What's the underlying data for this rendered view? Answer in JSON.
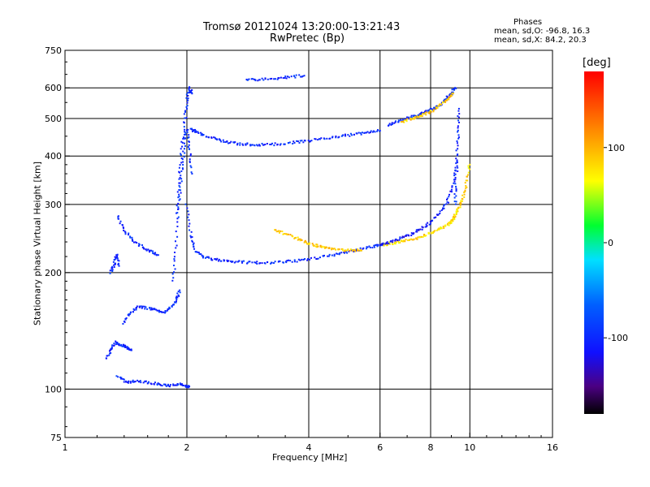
{
  "header": {
    "title_line1": "Tromsø 20121024 13:20:00-13:21:43",
    "title_line2": "RwPretec (Bp)",
    "phases_title": "Phases",
    "phases_o": "mean, sd,O:  -96.8, 16.3",
    "phases_x": "mean, sd,X:  84.2, 20.3"
  },
  "colorbar": {
    "unit": "[deg]",
    "range": [
      -180,
      180
    ],
    "ticks": [
      100,
      0,
      -100
    ],
    "tick_labels": [
      "100",
      "0",
      "-100"
    ]
  },
  "chart_data": {
    "type": "scatter",
    "title": "Tromsø 20121024 13:20:00-13:21:43",
    "subtitle": "RwPretec (Bp)",
    "xlabel": "Frequency [MHz]",
    "ylabel": "Stationary phase Virtual Height [km]",
    "xscale": "log",
    "yscale": "log",
    "xlim": [
      1,
      16
    ],
    "ylim": [
      75,
      750
    ],
    "xticks": [
      1,
      2,
      4,
      6,
      8,
      10,
      16
    ],
    "xtick_labels": [
      "1",
      "2",
      "4",
      "6",
      "8",
      "10",
      "16"
    ],
    "yticks": [
      75,
      100,
      200,
      300,
      400,
      500,
      600,
      750
    ],
    "ytick_labels": [
      "75",
      "100",
      "200",
      "300",
      "400",
      "500",
      "600",
      "750"
    ],
    "grid": true,
    "color_by": "phase [deg]",
    "traces": [
      {
        "phase": -100,
        "x": [
          1.3,
          1.32,
          1.34,
          1.36
        ],
        "y": [
          200,
          210,
          222,
          208
        ]
      },
      {
        "phase": -100,
        "x": [
          1.35,
          1.4,
          1.47,
          1.55,
          1.62,
          1.7
        ],
        "y": [
          280,
          258,
          242,
          233,
          227,
          222
        ]
      },
      {
        "phase": -100,
        "x": [
          1.27,
          1.3,
          1.34,
          1.38,
          1.42,
          1.46
        ],
        "y": [
          120,
          127,
          132,
          130,
          128,
          126
        ]
      },
      {
        "phase": -100,
        "x": [
          1.4,
          1.45,
          1.52,
          1.6,
          1.68,
          1.75,
          1.82,
          1.88,
          1.92
        ],
        "y": [
          148,
          158,
          163,
          162,
          160,
          158,
          162,
          170,
          180
        ]
      },
      {
        "phase": -100,
        "x": [
          1.35,
          1.42,
          1.5,
          1.6,
          1.7,
          1.8,
          1.9,
          1.98,
          2.02
        ],
        "y": [
          108,
          104,
          105,
          104,
          103,
          102,
          103,
          102,
          101
        ]
      },
      {
        "phase": -100,
        "x": [
          1.85,
          1.88,
          1.9,
          1.92,
          1.95,
          1.98,
          2.0,
          2.03,
          2.06
        ],
        "y": [
          190,
          230,
          300,
          360,
          430,
          500,
          560,
          600,
          580
        ]
      },
      {
        "phase": -95,
        "x": [
          1.9,
          1.93,
          1.96,
          2.0,
          2.03,
          2.06
        ],
        "y": [
          280,
          340,
          400,
          470,
          420,
          360
        ]
      },
      {
        "phase": -100,
        "x": [
          2.05,
          2.1,
          2.2,
          2.35,
          2.5,
          2.7,
          2.9,
          3.1,
          3.4,
          3.7,
          4.0,
          4.4,
          4.8,
          5.2,
          5.6,
          6.0
        ],
        "y": [
          470,
          462,
          452,
          442,
          435,
          430,
          428,
          428,
          430,
          434,
          438,
          444,
          450,
          455,
          460,
          465
        ]
      },
      {
        "phase": -100,
        "x": [
          2.0,
          2.05,
          2.1,
          2.2,
          2.35,
          2.5,
          2.7,
          2.95,
          3.2,
          3.5,
          3.8,
          4.2,
          4.6,
          5.0,
          5.4,
          5.8,
          6.1
        ],
        "y": [
          300,
          250,
          228,
          220,
          216,
          214,
          213,
          212,
          212,
          213,
          215,
          218,
          222,
          226,
          230,
          234,
          236
        ]
      },
      {
        "phase": 90,
        "x": [
          3.3,
          3.5,
          3.7,
          3.9,
          4.1,
          4.3,
          4.5,
          4.8,
          5.1,
          5.4
        ],
        "y": [
          258,
          252,
          246,
          240,
          236,
          233,
          231,
          229,
          228,
          228
        ]
      },
      {
        "phase": 80,
        "x": [
          6.1,
          6.4,
          6.7,
          7.0,
          7.4,
          7.8,
          8.2,
          8.6,
          8.9,
          9.1,
          9.25,
          9.4,
          9.6,
          9.8,
          10.0
        ],
        "y": [
          236,
          238,
          240,
          242,
          245,
          250,
          256,
          262,
          268,
          275,
          285,
          295,
          310,
          340,
          380
        ]
      },
      {
        "phase": -110,
        "x": [
          6.0,
          6.4,
          6.8,
          7.2,
          7.6,
          8.0,
          8.4,
          8.8,
          9.1,
          9.3
        ],
        "y": [
          236,
          240,
          246,
          252,
          260,
          270,
          285,
          305,
          340,
          390
        ]
      },
      {
        "phase": -100,
        "x": [
          6.3,
          6.6,
          6.9,
          7.2,
          7.5,
          7.8,
          8.1,
          8.4,
          8.7,
          9.0,
          9.2
        ],
        "y": [
          480,
          490,
          497,
          505,
          512,
          520,
          530,
          540,
          560,
          580,
          600
        ]
      },
      {
        "phase": 90,
        "x": [
          6.8,
          7.2,
          7.6,
          8.0,
          8.4,
          8.8,
          9.1
        ],
        "y": [
          490,
          500,
          510,
          520,
          540,
          560,
          580
        ]
      },
      {
        "phase": -100,
        "x": [
          2.8,
          3.0,
          3.3,
          3.6,
          3.9
        ],
        "y": [
          632,
          630,
          635,
          640,
          645
        ]
      },
      {
        "phase": -100,
        "x": [
          9.2,
          9.25,
          9.3,
          9.35,
          9.4
        ],
        "y": [
          300,
          340,
          400,
          460,
          530
        ]
      }
    ]
  }
}
